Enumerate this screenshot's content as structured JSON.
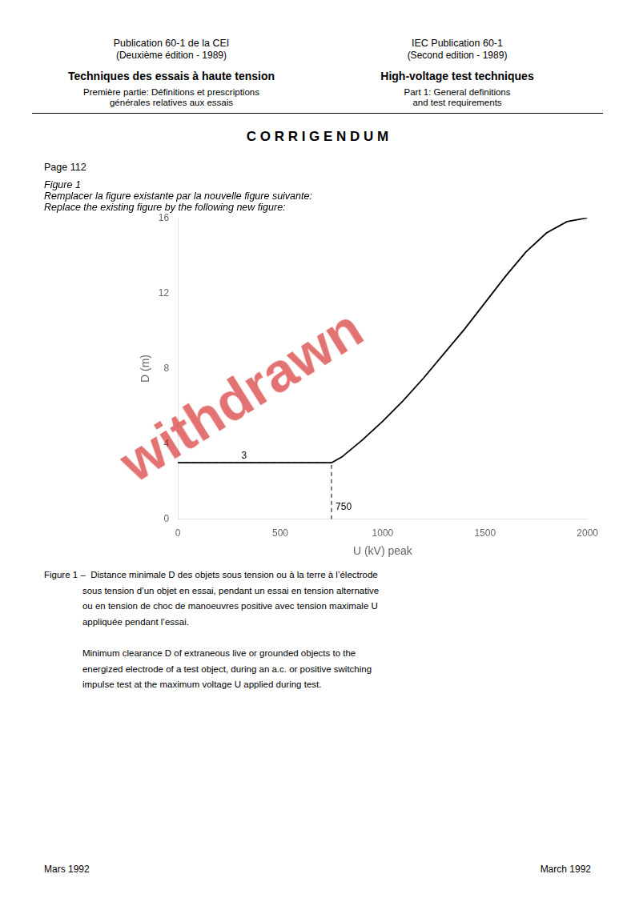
{
  "page_texts": {
    "page_title_left_line1": "Publication 60-1 de la CEI",
    "page_title_left_line2": "(Deuxième édition - 1989)",
    "page_subtitle_left": "Techniques des essais à haute tension",
    "page_desc_left_line1": "Première partie: Définitions et prescriptions",
    "page_desc_left_line2": "générales relatives aux essais",
    "page_title_right_line1": "IEC Publication 60-1",
    "page_title_right_line2": "(Second edition - 1989)",
    "page_subtitle_right": "High-voltage test techniques",
    "page_desc_right_line1": "Part 1: General definitions",
    "page_desc_right_line2": "and test requirements",
    "corrigendum_title": "C O R R I G E N D U M",
    "page_number": "Page 112",
    "figure_label": "Figure 1",
    "figure_instruction_fr": "Remplacer la figure existante par la nouvelle figure suivante:",
    "figure_instruction_en": "Replace the existing figure by the following new figure:",
    "fig_caption_line1": "Figure 1 –  Distance minimale D des objets sous tension ou à la terre à l’électrode",
    "fig_caption_line2": "               sous tension d’un objet en essai, pendant un essai en tension alternative",
    "fig_caption_line3": "               ou en tension de choc de manoeuvres positive avec tension maximale U",
    "fig_caption_line4": "               appliquée pendant l’essai.",
    "fig_caption_en_line1": "               Minimum clearance D of extraneous live or grounded objects to the",
    "fig_caption_en_line2": "               energized electrode of a test object, during an a.c. or positive switching",
    "fig_caption_en_line3": "               impulse test at the maximum voltage U applied during test.",
    "footer_left": "Mars 1992",
    "footer_right": "March 1992"
  },
  "watermark": {
    "text": "withdrawn",
    "color": "#cc0000"
  },
  "chart_data": {
    "type": "line",
    "xlabel": "U (kV) peak",
    "ylabel": "D (m)",
    "xlim": [
      0,
      2000
    ],
    "ylim": [
      0,
      16
    ],
    "xticks": [
      0,
      500,
      1000,
      1500,
      2000
    ],
    "yticks": [
      0,
      4,
      8,
      12,
      16
    ],
    "grid": false,
    "series": [
      {
        "x": [
          0,
          750
        ],
        "values": [
          3.0,
          3.0
        ],
        "color": "#000000",
        "line_style": "solid"
      },
      {
        "x": [
          750,
          800,
          900,
          1000,
          1100,
          1200,
          1300,
          1400,
          1500,
          1600,
          1700,
          1800,
          1900,
          2000
        ],
        "values": [
          3.0,
          3.3,
          4.2,
          5.2,
          6.3,
          7.5,
          8.8,
          10.1,
          11.5,
          12.9,
          14.2,
          15.2,
          15.8,
          16.0
        ],
        "color": "#000000",
        "line_style": "solid"
      },
      {
        "x": [
          750,
          750
        ],
        "values": [
          0,
          3.0
        ],
        "color": "#000000",
        "line_style": "dashed"
      },
      {
        "x": [
          0,
          750
        ],
        "values": [
          3.0,
          3.0
        ],
        "color": "#000000",
        "line_style": "dashed"
      }
    ],
    "annotations": [
      {
        "text": "3",
        "x": 310,
        "y": 3.1
      },
      {
        "text": "750",
        "x": 770,
        "y": 0.4
      }
    ]
  }
}
